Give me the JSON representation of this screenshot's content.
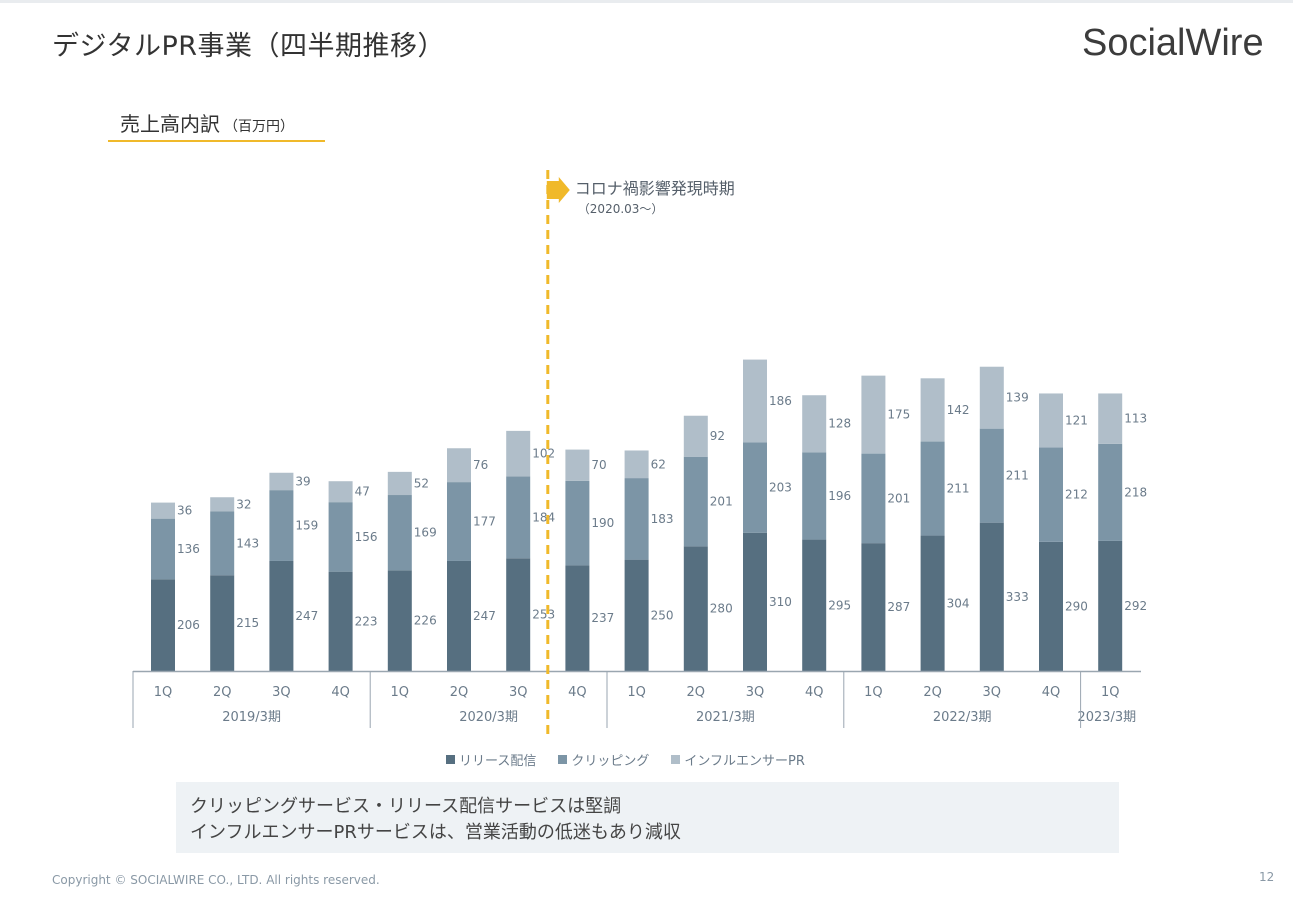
{
  "header": {
    "title": "デジタルPR事業（四半期推移）",
    "brand": "SocialWire"
  },
  "section": {
    "title": "売上高内訳",
    "unit": "（百万円）"
  },
  "annotation": {
    "text": "コロナ禍影響発現時期",
    "sub": "（2020.03～）"
  },
  "colors": {
    "release": "#566f80",
    "clipping": "#7c95a6",
    "influencer": "#b0bec9",
    "accent": "#f0b92a"
  },
  "chart_data": {
    "type": "bar",
    "stacked": true,
    "categories": [
      "1Q",
      "2Q",
      "3Q",
      "4Q",
      "1Q",
      "2Q",
      "3Q",
      "4Q",
      "1Q",
      "2Q",
      "3Q",
      "4Q",
      "1Q",
      "2Q",
      "3Q",
      "4Q",
      "1Q"
    ],
    "groups": [
      {
        "label": "2019/3期",
        "count": 4
      },
      {
        "label": "2020/3期",
        "count": 4
      },
      {
        "label": "2021/3期",
        "count": 4
      },
      {
        "label": "2022/3期",
        "count": 4
      },
      {
        "label": "2023/3期",
        "count": 1
      }
    ],
    "series": [
      {
        "name": "リリース配信",
        "values": [
          206,
          215,
          247,
          223,
          226,
          247,
          253,
          237,
          250,
          280,
          310,
          295,
          287,
          304,
          333,
          290,
          292
        ]
      },
      {
        "name": "クリッピング",
        "values": [
          136,
          143,
          159,
          156,
          169,
          177,
          184,
          190,
          183,
          201,
          203,
          196,
          201,
          211,
          211,
          212,
          218
        ]
      },
      {
        "name": "インフルエンサーPR",
        "values": [
          36,
          32,
          39,
          47,
          52,
          76,
          102,
          70,
          62,
          92,
          186,
          128,
          175,
          142,
          139,
          121,
          113
        ]
      }
    ],
    "marker_after_index": 6
  },
  "note": {
    "line1": "クリッピングサービス・リリース配信サービスは堅調",
    "line2": "インフルエンサーPRサービスは、営業活動の低迷もあり減収"
  },
  "footer": {
    "copyright": "Copyright © SOCIALWIRE CO., LTD. All rights reserved.",
    "page": "12"
  }
}
